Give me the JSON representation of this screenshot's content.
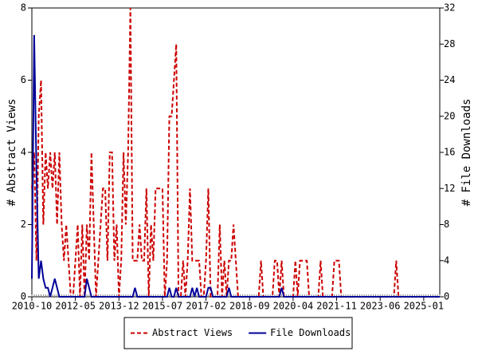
{
  "chart_data": {
    "type": "line",
    "y_label": "# Abstract Views",
    "y2_label": "# File Downloads",
    "x": [
      "2010-10",
      "2010-11",
      "2010-12",
      "2011-01",
      "2011-02",
      "2011-03",
      "2011-04",
      "2011-05",
      "2011-06",
      "2011-07",
      "2011-08",
      "2011-09",
      "2011-10",
      "2011-11",
      "2011-12",
      "2012-01",
      "2012-02",
      "2012-03",
      "2012-04",
      "2012-05",
      "2012-06",
      "2012-07",
      "2012-08",
      "2012-09",
      "2012-10",
      "2012-11",
      "2012-12",
      "2013-01",
      "2013-02",
      "2013-03",
      "2013-04",
      "2013-05",
      "2013-06",
      "2013-07",
      "2013-08",
      "2013-09",
      "2013-10",
      "2013-11",
      "2013-12",
      "2014-01",
      "2014-02",
      "2014-03",
      "2014-04",
      "2014-05",
      "2014-06",
      "2014-07",
      "2014-08",
      "2014-09",
      "2014-10",
      "2014-11",
      "2014-12",
      "2015-01",
      "2015-02",
      "2015-03",
      "2015-04",
      "2015-05",
      "2015-06",
      "2015-07",
      "2015-08",
      "2015-09",
      "2015-10",
      "2015-11",
      "2015-12",
      "2016-01",
      "2016-02",
      "2016-03",
      "2016-04",
      "2016-05",
      "2016-06",
      "2016-07",
      "2016-08",
      "2016-09",
      "2016-10",
      "2016-11",
      "2016-12",
      "2017-01",
      "2017-02",
      "2017-03",
      "2017-04",
      "2017-05",
      "2017-06",
      "2017-07",
      "2017-08",
      "2017-09",
      "2017-10",
      "2017-11",
      "2017-12",
      "2018-01",
      "2018-02",
      "2018-03",
      "2018-04",
      "2018-05",
      "2018-06",
      "2018-07",
      "2018-08",
      "2018-09",
      "2018-10",
      "2018-11",
      "2018-12",
      "2019-01",
      "2019-02",
      "2019-03",
      "2019-04",
      "2019-05",
      "2019-06",
      "2019-07",
      "2019-08",
      "2019-09",
      "2019-10",
      "2019-11",
      "2019-12",
      "2020-01",
      "2020-02",
      "2020-03",
      "2020-04",
      "2020-05",
      "2020-06",
      "2020-07",
      "2020-08",
      "2020-09",
      "2020-10",
      "2020-11",
      "2020-12",
      "2021-01",
      "2021-02",
      "2021-03",
      "2021-04",
      "2021-05",
      "2021-06",
      "2021-07",
      "2021-08",
      "2021-09",
      "2021-10",
      "2021-11",
      "2021-12",
      "2022-01",
      "2022-02",
      "2022-03",
      "2022-04",
      "2022-05",
      "2022-06",
      "2022-07",
      "2022-08",
      "2022-09",
      "2022-10",
      "2022-11",
      "2022-12",
      "2023-01",
      "2023-02",
      "2023-03",
      "2023-04",
      "2023-05",
      "2023-06",
      "2023-07",
      "2023-08",
      "2023-09",
      "2023-10",
      "2023-11",
      "2023-12",
      "2024-01",
      "2024-02",
      "2024-03",
      "2024-04",
      "2024-05",
      "2024-06",
      "2024-07",
      "2024-08",
      "2024-09",
      "2024-10",
      "2024-11",
      "2024-12",
      "2025-01",
      "2025-02",
      "2025-03",
      "2025-04",
      "2025-05",
      "2025-06",
      "2025-07",
      "2025-08"
    ],
    "xlim": [
      "2010-10",
      "2025-08"
    ],
    "xticks": [
      "2010-10",
      "2012-05",
      "2013-12",
      "2015-07",
      "2017-02",
      "2018-09",
      "2020-04",
      "2021-11",
      "2023-06",
      "2025-01"
    ],
    "ylim": [
      0,
      8
    ],
    "yticks": [
      0,
      2,
      4,
      6,
      8
    ],
    "y2lim": [
      0,
      32
    ],
    "y2ticks": [
      0,
      4,
      8,
      12,
      16,
      20,
      24,
      28,
      32
    ],
    "legend": "bottom",
    "series": [
      {
        "name": "Abstract Views",
        "color": "#cc0000",
        "dash": true,
        "values": [
          3,
          4,
          1,
          5,
          6,
          2,
          4,
          3,
          4,
          3,
          4,
          2,
          4,
          2,
          1,
          2,
          1,
          0,
          0,
          1,
          2,
          0,
          2,
          0,
          2,
          1,
          4,
          2,
          0,
          1,
          2,
          3,
          3,
          1,
          4,
          4,
          1,
          2,
          0,
          1,
          4,
          2,
          4,
          8,
          1,
          1,
          1,
          2,
          1,
          1,
          3,
          0,
          2,
          1,
          3,
          3,
          3,
          3,
          0,
          1,
          5,
          5,
          6,
          7,
          0,
          0,
          1,
          0,
          1,
          3,
          1,
          1,
          1,
          1,
          0,
          0,
          1,
          3,
          0,
          0,
          0,
          0,
          2,
          0,
          1,
          0,
          1,
          1,
          2,
          1,
          0,
          0,
          0,
          0,
          0,
          0,
          0,
          0,
          0,
          0,
          1,
          0,
          0,
          0,
          0,
          0,
          1,
          1,
          0,
          1,
          0,
          0,
          0,
          0,
          0,
          1,
          0,
          1,
          1,
          1,
          1,
          0,
          0,
          0,
          0,
          0,
          1,
          0,
          0,
          0,
          0,
          0,
          1,
          1,
          1,
          0,
          0,
          0,
          0,
          0,
          0,
          0,
          0,
          0,
          0,
          0,
          0,
          0,
          0,
          0,
          0,
          0,
          0,
          0,
          0,
          0,
          0,
          0,
          0,
          1,
          0,
          0,
          0,
          0,
          0,
          0,
          0,
          0,
          0,
          0,
          0,
          0,
          0,
          0,
          0,
          0,
          0,
          0,
          0
        ]
      },
      {
        "name": "File Downloads",
        "color": "#000099",
        "axis": "y2",
        "dash": false,
        "values": [
          2,
          29,
          14,
          2,
          4,
          2,
          1,
          1,
          0,
          1,
          2,
          1,
          0,
          0,
          0,
          0,
          0,
          0,
          0,
          0,
          0,
          0,
          0,
          0,
          2,
          1,
          0,
          0,
          0,
          0,
          0,
          0,
          0,
          0,
          0,
          0,
          0,
          0,
          0,
          0,
          0,
          0,
          0,
          0,
          0,
          1,
          0,
          0,
          0,
          0,
          0,
          0,
          0,
          0,
          0,
          0,
          0,
          0,
          0,
          0,
          1,
          0,
          0,
          1,
          0,
          0,
          0,
          0,
          0,
          0,
          1,
          0,
          1,
          0,
          0,
          0,
          0,
          1,
          1,
          0,
          0,
          0,
          0,
          0,
          0,
          0,
          1,
          0,
          0,
          0,
          0,
          0,
          0,
          0,
          0,
          0,
          0,
          0,
          0,
          0,
          0,
          0,
          0,
          0,
          0,
          0,
          0,
          0,
          0,
          1,
          0,
          0,
          0,
          0,
          0,
          0,
          0,
          0,
          0,
          0,
          0,
          0,
          0,
          0,
          0,
          0,
          0,
          0,
          0,
          0,
          0,
          0,
          0,
          0,
          0,
          0,
          0,
          0,
          0,
          0,
          0,
          0,
          0,
          0,
          0,
          0,
          0,
          0,
          0,
          0,
          0,
          0,
          0,
          0,
          0,
          0,
          0,
          0,
          0,
          0,
          0,
          0,
          0,
          0,
          0,
          0,
          0,
          0,
          0,
          0,
          0,
          0,
          0,
          0,
          0,
          0,
          0,
          0,
          0
        ]
      }
    ]
  }
}
